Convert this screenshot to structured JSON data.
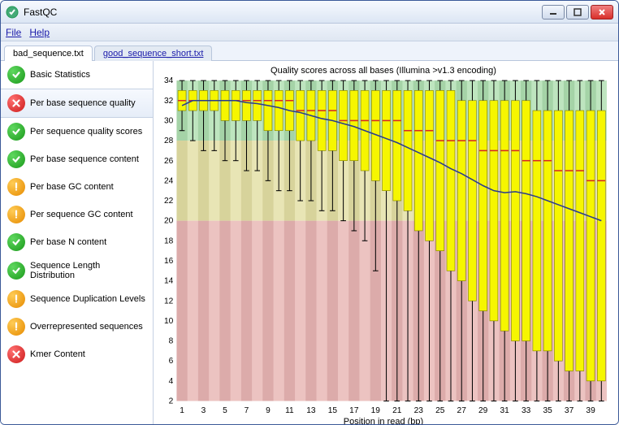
{
  "window": {
    "title": "FastQC"
  },
  "menu": {
    "file": "File",
    "help": "Help"
  },
  "tabs": [
    {
      "label": "bad_sequence.txt",
      "active": true
    },
    {
      "label": "good_sequence_short.txt",
      "active": false
    }
  ],
  "sidebar": [
    {
      "status": "pass",
      "label": "Basic Statistics",
      "selected": false
    },
    {
      "status": "fail",
      "label": "Per base sequence quality",
      "selected": true
    },
    {
      "status": "pass",
      "label": "Per sequence quality scores",
      "selected": false
    },
    {
      "status": "pass",
      "label": "Per base sequence content",
      "selected": false
    },
    {
      "status": "warn",
      "label": "Per base GC content",
      "selected": false
    },
    {
      "status": "warn",
      "label": "Per sequence GC content",
      "selected": false
    },
    {
      "status": "pass",
      "label": "Per base N content",
      "selected": false
    },
    {
      "status": "pass",
      "label": "Sequence Length Distribution",
      "selected": false
    },
    {
      "status": "warn",
      "label": "Sequence Duplication Levels",
      "selected": false
    },
    {
      "status": "warn",
      "label": "Overrepresented sequences",
      "selected": false
    },
    {
      "status": "fail",
      "label": "Kmer Content",
      "selected": false
    }
  ],
  "chart": {
    "title": "Quality scores across all bases (Illumina >v1.3 encoding)",
    "xlabel": "Position in read (bp)",
    "ylim": [
      2,
      34
    ],
    "yticks": [
      2,
      4,
      6,
      8,
      10,
      12,
      14,
      16,
      18,
      20,
      22,
      24,
      26,
      28,
      30,
      32,
      34
    ],
    "xticks": [
      1,
      3,
      5,
      7,
      9,
      11,
      13,
      15,
      17,
      19,
      21,
      23,
      25,
      27,
      29,
      31,
      33,
      35,
      37,
      39
    ],
    "positions": [
      1,
      2,
      3,
      4,
      5,
      6,
      7,
      8,
      9,
      10,
      11,
      12,
      13,
      14,
      15,
      16,
      17,
      18,
      19,
      20,
      21,
      22,
      23,
      24,
      25,
      26,
      27,
      28,
      29,
      30,
      31,
      32,
      33,
      34,
      35,
      36,
      37,
      38,
      39,
      40
    ],
    "zones": {
      "good_color": "#a8dcaa",
      "good_min": 28,
      "good_max": 34,
      "warn_color": "#e1dc9c",
      "warn_min": 20,
      "warn_max": 28,
      "bad_color": "#e6afad",
      "bad_min": 2,
      "bad_max": 20
    },
    "box_fill": "#f6f600",
    "box_stroke": "#808000",
    "median_color": "#d62728",
    "whisker_color": "#000000",
    "mean_line_color": "#2a3b8f",
    "grid_stripe_odd": "rgba(255,255,255,0)",
    "grid_stripe_even": "rgba(150,150,150,0.12)",
    "tick_fontsize": 10,
    "data": [
      {
        "pos": 1,
        "lw": 29,
        "q1": 31,
        "med": 32,
        "q3": 33,
        "uw": 34,
        "mean": 31.5
      },
      {
        "pos": 2,
        "lw": 28,
        "q1": 31,
        "med": 32,
        "q3": 33,
        "uw": 34,
        "mean": 32.0
      },
      {
        "pos": 3,
        "lw": 27,
        "q1": 31,
        "med": 32,
        "q3": 33,
        "uw": 34,
        "mean": 32.0
      },
      {
        "pos": 4,
        "lw": 27,
        "q1": 31,
        "med": 32,
        "q3": 33,
        "uw": 34,
        "mean": 32.0
      },
      {
        "pos": 5,
        "lw": 26,
        "q1": 30,
        "med": 32,
        "q3": 33,
        "uw": 34,
        "mean": 32.0
      },
      {
        "pos": 6,
        "lw": 26,
        "q1": 30,
        "med": 32,
        "q3": 33,
        "uw": 34,
        "mean": 32.0
      },
      {
        "pos": 7,
        "lw": 25,
        "q1": 30,
        "med": 32,
        "q3": 33,
        "uw": 34,
        "mean": 31.8
      },
      {
        "pos": 8,
        "lw": 25,
        "q1": 30,
        "med": 32,
        "q3": 33,
        "uw": 34,
        "mean": 31.7
      },
      {
        "pos": 9,
        "lw": 24,
        "q1": 29,
        "med": 32,
        "q3": 33,
        "uw": 34,
        "mean": 31.5
      },
      {
        "pos": 10,
        "lw": 23,
        "q1": 29,
        "med": 32,
        "q3": 33,
        "uw": 34,
        "mean": 31.3
      },
      {
        "pos": 11,
        "lw": 23,
        "q1": 29,
        "med": 32,
        "q3": 33,
        "uw": 34,
        "mean": 31.0
      },
      {
        "pos": 12,
        "lw": 22,
        "q1": 28,
        "med": 31,
        "q3": 33,
        "uw": 34,
        "mean": 30.8
      },
      {
        "pos": 13,
        "lw": 22,
        "q1": 28,
        "med": 31,
        "q3": 33,
        "uw": 34,
        "mean": 30.5
      },
      {
        "pos": 14,
        "lw": 21,
        "q1": 27,
        "med": 31,
        "q3": 33,
        "uw": 34,
        "mean": 30.2
      },
      {
        "pos": 15,
        "lw": 21,
        "q1": 27,
        "med": 31,
        "q3": 33,
        "uw": 34,
        "mean": 30.0
      },
      {
        "pos": 16,
        "lw": 20,
        "q1": 26,
        "med": 30,
        "q3": 33,
        "uw": 34,
        "mean": 29.7
      },
      {
        "pos": 17,
        "lw": 19,
        "q1": 26,
        "med": 30,
        "q3": 33,
        "uw": 34,
        "mean": 29.4
      },
      {
        "pos": 18,
        "lw": 18,
        "q1": 25,
        "med": 30,
        "q3": 33,
        "uw": 34,
        "mean": 29.0
      },
      {
        "pos": 19,
        "lw": 15,
        "q1": 24,
        "med": 30,
        "q3": 33,
        "uw": 34,
        "mean": 28.6
      },
      {
        "pos": 20,
        "lw": 2,
        "q1": 23,
        "med": 30,
        "q3": 33,
        "uw": 34,
        "mean": 28.2
      },
      {
        "pos": 21,
        "lw": 2,
        "q1": 22,
        "med": 30,
        "q3": 33,
        "uw": 34,
        "mean": 27.8
      },
      {
        "pos": 22,
        "lw": 2,
        "q1": 21,
        "med": 29,
        "q3": 33,
        "uw": 34,
        "mean": 27.3
      },
      {
        "pos": 23,
        "lw": 2,
        "q1": 19,
        "med": 29,
        "q3": 33,
        "uw": 34,
        "mean": 26.8
      },
      {
        "pos": 24,
        "lw": 2,
        "q1": 18,
        "med": 29,
        "q3": 33,
        "uw": 34,
        "mean": 26.3
      },
      {
        "pos": 25,
        "lw": 2,
        "q1": 17,
        "med": 28,
        "q3": 33,
        "uw": 34,
        "mean": 25.8
      },
      {
        "pos": 26,
        "lw": 2,
        "q1": 15,
        "med": 28,
        "q3": 33,
        "uw": 34,
        "mean": 25.2
      },
      {
        "pos": 27,
        "lw": 2,
        "q1": 14,
        "med": 28,
        "q3": 32,
        "uw": 34,
        "mean": 24.7
      },
      {
        "pos": 28,
        "lw": 2,
        "q1": 12,
        "med": 28,
        "q3": 32,
        "uw": 34,
        "mean": 24.1
      },
      {
        "pos": 29,
        "lw": 2,
        "q1": 11,
        "med": 27,
        "q3": 32,
        "uw": 34,
        "mean": 23.5
      },
      {
        "pos": 30,
        "lw": 2,
        "q1": 10,
        "med": 27,
        "q3": 32,
        "uw": 34,
        "mean": 23.0
      },
      {
        "pos": 31,
        "lw": 2,
        "q1": 9,
        "med": 27,
        "q3": 32,
        "uw": 34,
        "mean": 22.8
      },
      {
        "pos": 32,
        "lw": 2,
        "q1": 8,
        "med": 27,
        "q3": 32,
        "uw": 34,
        "mean": 22.9
      },
      {
        "pos": 33,
        "lw": 2,
        "q1": 8,
        "med": 26,
        "q3": 32,
        "uw": 34,
        "mean": 22.7
      },
      {
        "pos": 34,
        "lw": 2,
        "q1": 7,
        "med": 26,
        "q3": 31,
        "uw": 34,
        "mean": 22.4
      },
      {
        "pos": 35,
        "lw": 2,
        "q1": 7,
        "med": 26,
        "q3": 31,
        "uw": 34,
        "mean": 22.0
      },
      {
        "pos": 36,
        "lw": 2,
        "q1": 6,
        "med": 25,
        "q3": 31,
        "uw": 34,
        "mean": 21.6
      },
      {
        "pos": 37,
        "lw": 2,
        "q1": 5,
        "med": 25,
        "q3": 31,
        "uw": 34,
        "mean": 21.2
      },
      {
        "pos": 38,
        "lw": 2,
        "q1": 5,
        "med": 25,
        "q3": 31,
        "uw": 34,
        "mean": 20.8
      },
      {
        "pos": 39,
        "lw": 2,
        "q1": 4,
        "med": 24,
        "q3": 31,
        "uw": 34,
        "mean": 20.4
      },
      {
        "pos": 40,
        "lw": 2,
        "q1": 4,
        "med": 24,
        "q3": 31,
        "uw": 34,
        "mean": 20.0
      }
    ]
  }
}
